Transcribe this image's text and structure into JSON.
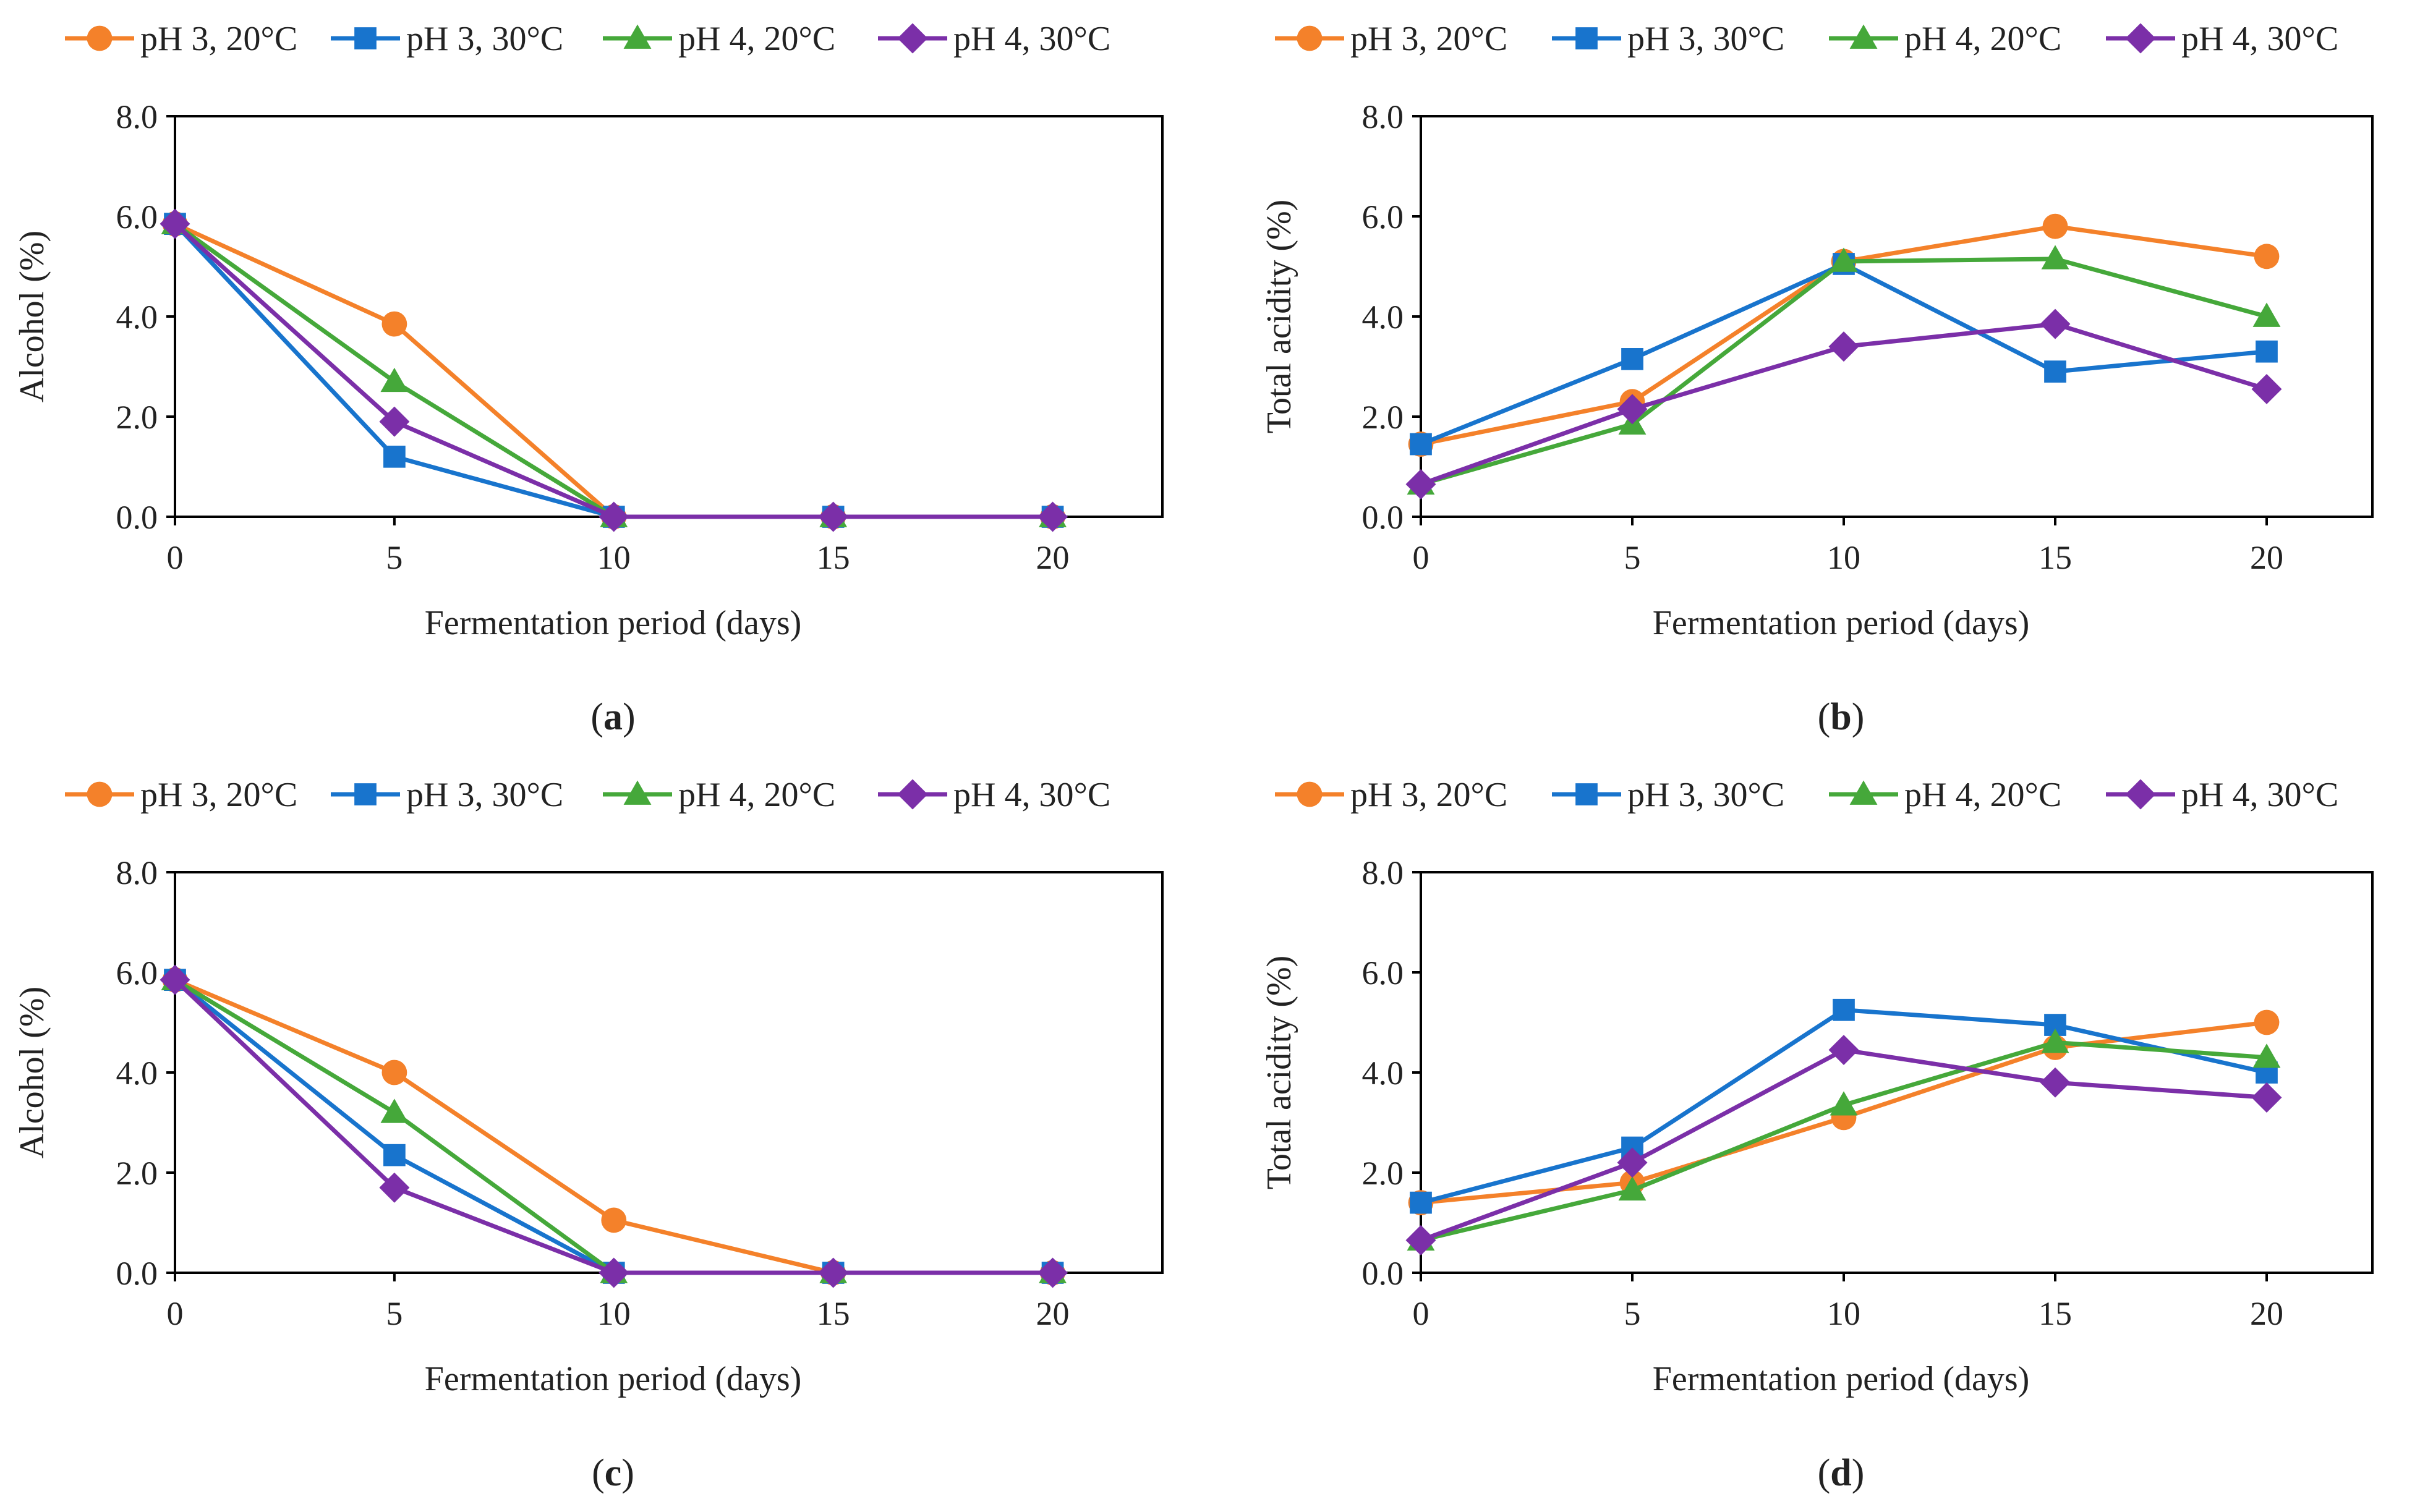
{
  "colors": {
    "pH 3, 20°C": "#F4812A",
    "pH 3, 30°C": "#1874CD",
    "pH 4, 20°C": "#45A83A",
    "pH 4, 30°C": "#7B2FA8",
    "axis": "#000000"
  },
  "markers": {
    "pH 3, 20°C": "circle",
    "pH 3, 30°C": "square",
    "pH 4, 20°C": "triangle",
    "pH 4, 30°C": "diamond"
  },
  "chart_data": [
    {
      "panel": "a",
      "caption": "(a)",
      "type": "line",
      "xlabel": "Fermentation period (days)",
      "ylabel": "Alcohol (%)",
      "x": [
        0,
        5,
        10,
        15,
        20
      ],
      "xlim": [
        0,
        22.5
      ],
      "ylim": [
        0,
        8
      ],
      "yticks": [
        "0.0",
        "2.0",
        "4.0",
        "6.0",
        "8.0"
      ],
      "xticks": [
        "0",
        "5",
        "10",
        "15",
        "20"
      ],
      "legend_position": "top",
      "series": [
        {
          "name": "pH 3, 20°C",
          "values": [
            5.85,
            3.85,
            0.0,
            0.0,
            0.0
          ]
        },
        {
          "name": "pH 3, 30°C",
          "values": [
            5.85,
            1.2,
            0.0,
            0.0,
            0.0
          ]
        },
        {
          "name": "pH 4, 20°C",
          "values": [
            5.85,
            2.7,
            0.0,
            0.0,
            0.0
          ]
        },
        {
          "name": "pH 4, 30°C",
          "values": [
            5.85,
            1.9,
            0.0,
            0.0,
            0.0
          ]
        }
      ]
    },
    {
      "panel": "b",
      "caption": "(b)",
      "type": "line",
      "xlabel": "Fermentation period (days)",
      "ylabel": "Total acidity (%)",
      "x": [
        0,
        5,
        10,
        15,
        20
      ],
      "xlim": [
        0,
        22.5
      ],
      "ylim": [
        0,
        8
      ],
      "yticks": [
        "0.0",
        "2.0",
        "4.0",
        "6.0",
        "8.0"
      ],
      "xticks": [
        "0",
        "5",
        "10",
        "15",
        "20"
      ],
      "legend_position": "top",
      "series": [
        {
          "name": "pH 3, 20°C",
          "values": [
            1.45,
            2.3,
            5.1,
            5.8,
            5.2
          ]
        },
        {
          "name": "pH 3, 30°C",
          "values": [
            1.45,
            3.15,
            5.05,
            2.9,
            3.3
          ]
        },
        {
          "name": "pH 4, 20°C",
          "values": [
            0.65,
            1.85,
            5.1,
            5.15,
            4.0
          ]
        },
        {
          "name": "pH 4, 30°C",
          "values": [
            0.65,
            2.15,
            3.4,
            3.85,
            2.55
          ]
        }
      ]
    },
    {
      "panel": "c",
      "caption": "(c)",
      "type": "line",
      "xlabel": "Fermentation period (days)",
      "ylabel": "Alcohol (%)",
      "x": [
        0,
        5,
        10,
        15,
        20
      ],
      "xlim": [
        0,
        22.5
      ],
      "ylim": [
        0,
        8
      ],
      "yticks": [
        "0.0",
        "2.0",
        "4.0",
        "6.0",
        "8.0"
      ],
      "xticks": [
        "0",
        "5",
        "10",
        "15",
        "20"
      ],
      "legend_position": "top",
      "series": [
        {
          "name": "pH 3, 20°C",
          "values": [
            5.85,
            4.0,
            1.05,
            0.0,
            0.0
          ]
        },
        {
          "name": "pH 3, 30°C",
          "values": [
            5.85,
            2.35,
            0.0,
            0.0,
            0.0
          ]
        },
        {
          "name": "pH 4, 20°C",
          "values": [
            5.85,
            3.2,
            0.0,
            0.0,
            0.0
          ]
        },
        {
          "name": "pH 4, 30°C",
          "values": [
            5.85,
            1.7,
            0.0,
            0.0,
            0.0
          ]
        }
      ]
    },
    {
      "panel": "d",
      "caption": "(d)",
      "type": "line",
      "xlabel": "Fermentation period (days)",
      "ylabel": "Total acidity (%)",
      "x": [
        0,
        5,
        10,
        15,
        20
      ],
      "xlim": [
        0,
        22.5
      ],
      "ylim": [
        0,
        8
      ],
      "yticks": [
        "0.0",
        "2.0",
        "4.0",
        "6.0",
        "8.0"
      ],
      "xticks": [
        "0",
        "5",
        "10",
        "15",
        "20"
      ],
      "legend_position": "top",
      "series": [
        {
          "name": "pH 3, 20°C",
          "values": [
            1.4,
            1.8,
            3.1,
            4.5,
            5.0
          ]
        },
        {
          "name": "pH 3, 30°C",
          "values": [
            1.4,
            2.5,
            5.25,
            4.95,
            4.0
          ]
        },
        {
          "name": "pH 4, 20°C",
          "values": [
            0.65,
            1.65,
            3.35,
            4.6,
            4.3
          ]
        },
        {
          "name": "pH 4, 30°C",
          "values": [
            0.65,
            2.2,
            4.45,
            3.8,
            3.5
          ]
        }
      ]
    }
  ]
}
